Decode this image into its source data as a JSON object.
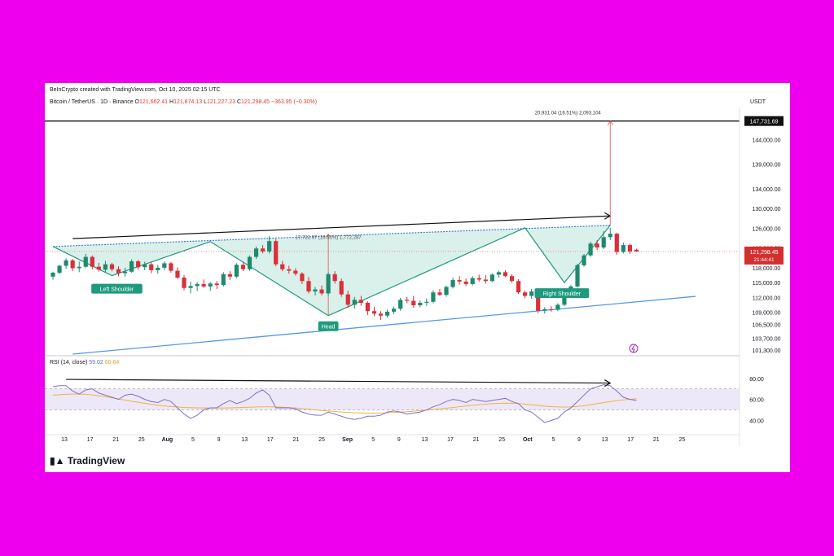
{
  "header": {
    "credit": "BeInCrypto created with TradingView.com, Oct 10, 2025 02:15 UTC",
    "symbol": "Bitcoin / TetherUS · 1D · Binance",
    "ohlc": {
      "o_label": "O",
      "o": "121,662.41",
      "h_label": "H",
      "h": "121,874.13",
      "l_label": "L",
      "l": "121,227.23",
      "c_label": "C",
      "c": "121,298.45",
      "change": "−363.95 (−0.30%)"
    },
    "currency": "USDT"
  },
  "rsi_header": {
    "label": "RSI (14, close)",
    "value": "59.02",
    "ma_value": "60.64"
  },
  "price_axis": {
    "ticks": [
      "144,000.00",
      "139,000.00",
      "134,000.00",
      "130,000.00",
      "126,000.00",
      "122,000.00",
      "118,000.00",
      "115,000.00",
      "112,000.00",
      "109,000.00",
      "106,500.00",
      "103,700.00",
      "101,300.00"
    ],
    "target_label": "147,731.69",
    "current_label": "121,298.45",
    "countdown": "21:44:41"
  },
  "rsi_axis": {
    "ticks": [
      "80.00",
      "60.00",
      "40.00"
    ]
  },
  "time_axis": {
    "ticks": [
      "13",
      "17",
      "21",
      "25",
      "Aug",
      "5",
      "9",
      "13",
      "17",
      "21",
      "25",
      "Sep",
      "5",
      "9",
      "13",
      "17",
      "21",
      "25",
      "Oct",
      "5",
      "9",
      "13",
      "17",
      "21",
      "25"
    ]
  },
  "annotations": {
    "left_shoulder": "Left Shoulder",
    "head": "Head",
    "right_shoulder": "Right Shoulder",
    "neck_measure": "17,722.97 (16.51%) 1,772,287",
    "target_measure": "20,931.04 (16.51%) 2,093,104"
  },
  "colors": {
    "up": "#1e8a6e",
    "down": "#d9303a",
    "pattern_fill": "#cdebe3",
    "pattern_line": "#1e9a7c",
    "neckline": "#3a7bd5",
    "trendline": "#5599e8",
    "rsi_line": "#7e6fd0",
    "rsi_ma": "#f0b43a",
    "rsi_band": "#ece8f8",
    "measure": "#e25050",
    "brand": "#ee00ee"
  },
  "chart_data": {
    "type": "candlestick",
    "symbol": "BTC/USDT",
    "timeframe": "1D",
    "ylim": [
      100500,
      148500
    ],
    "candles": [
      {
        "o": 116200,
        "h": 117200,
        "l": 115600,
        "c": 117000
      },
      {
        "o": 117000,
        "h": 118600,
        "l": 116700,
        "c": 118400
      },
      {
        "o": 118400,
        "h": 119900,
        "l": 117800,
        "c": 119500
      },
      {
        "o": 119500,
        "h": 119800,
        "l": 117300,
        "c": 117900
      },
      {
        "o": 117900,
        "h": 119300,
        "l": 117100,
        "c": 118200
      },
      {
        "o": 118200,
        "h": 120800,
        "l": 118000,
        "c": 120200
      },
      {
        "o": 120200,
        "h": 120500,
        "l": 117700,
        "c": 118200
      },
      {
        "o": 118200,
        "h": 119000,
        "l": 117200,
        "c": 117600
      },
      {
        "o": 117600,
        "h": 119400,
        "l": 117000,
        "c": 118700
      },
      {
        "o": 118700,
        "h": 119000,
        "l": 117300,
        "c": 117700
      },
      {
        "o": 117700,
        "h": 118300,
        "l": 116300,
        "c": 116900
      },
      {
        "o": 116900,
        "h": 118000,
        "l": 116200,
        "c": 117200
      },
      {
        "o": 117200,
        "h": 119700,
        "l": 117000,
        "c": 119300
      },
      {
        "o": 119300,
        "h": 119600,
        "l": 117600,
        "c": 118100
      },
      {
        "o": 118100,
        "h": 119200,
        "l": 117500,
        "c": 118700
      },
      {
        "o": 118700,
        "h": 119100,
        "l": 116900,
        "c": 117500
      },
      {
        "o": 117500,
        "h": 118600,
        "l": 116800,
        "c": 118000
      },
      {
        "o": 118000,
        "h": 119300,
        "l": 117500,
        "c": 118900
      },
      {
        "o": 118900,
        "h": 119200,
        "l": 117000,
        "c": 117400
      },
      {
        "o": 117400,
        "h": 118100,
        "l": 115700,
        "c": 116000
      },
      {
        "o": 116000,
        "h": 116500,
        "l": 113400,
        "c": 113900
      },
      {
        "o": 113900,
        "h": 115200,
        "l": 112800,
        "c": 114300
      },
      {
        "o": 114300,
        "h": 115100,
        "l": 113300,
        "c": 114700
      },
      {
        "o": 114700,
        "h": 115600,
        "l": 113900,
        "c": 114200
      },
      {
        "o": 114200,
        "h": 115100,
        "l": 113300,
        "c": 114800
      },
      {
        "o": 114800,
        "h": 115300,
        "l": 113700,
        "c": 114500
      },
      {
        "o": 114500,
        "h": 117100,
        "l": 114200,
        "c": 116700
      },
      {
        "o": 116700,
        "h": 117300,
        "l": 115500,
        "c": 116200
      },
      {
        "o": 116200,
        "h": 118900,
        "l": 115900,
        "c": 118600
      },
      {
        "o": 118600,
        "h": 119200,
        "l": 117300,
        "c": 117700
      },
      {
        "o": 117700,
        "h": 120500,
        "l": 117400,
        "c": 120200
      },
      {
        "o": 120200,
        "h": 122300,
        "l": 119800,
        "c": 121900
      },
      {
        "o": 121900,
        "h": 122600,
        "l": 120900,
        "c": 121300
      },
      {
        "o": 121300,
        "h": 124400,
        "l": 120900,
        "c": 123400
      },
      {
        "o": 123400,
        "h": 123800,
        "l": 118300,
        "c": 118700
      },
      {
        "o": 118700,
        "h": 119400,
        "l": 117300,
        "c": 117700
      },
      {
        "o": 117700,
        "h": 118400,
        "l": 116800,
        "c": 117400
      },
      {
        "o": 117400,
        "h": 117900,
        "l": 116400,
        "c": 116800
      },
      {
        "o": 116800,
        "h": 117100,
        "l": 114700,
        "c": 115300
      },
      {
        "o": 115300,
        "h": 116100,
        "l": 112800,
        "c": 113200
      },
      {
        "o": 113200,
        "h": 114100,
        "l": 112400,
        "c": 113600
      },
      {
        "o": 113600,
        "h": 114400,
        "l": 112400,
        "c": 112800
      },
      {
        "o": 112800,
        "h": 117100,
        "l": 112300,
        "c": 116700
      },
      {
        "o": 116700,
        "h": 117300,
        "l": 114800,
        "c": 115300
      },
      {
        "o": 115300,
        "h": 115800,
        "l": 112100,
        "c": 112600
      },
      {
        "o": 112600,
        "h": 113300,
        "l": 109900,
        "c": 110500
      },
      {
        "o": 110500,
        "h": 112100,
        "l": 109700,
        "c": 111500
      },
      {
        "o": 111500,
        "h": 112300,
        "l": 110300,
        "c": 110900
      },
      {
        "o": 110900,
        "h": 111200,
        "l": 108400,
        "c": 109200
      },
      {
        "o": 109200,
        "h": 110100,
        "l": 108200,
        "c": 108700
      },
      {
        "o": 108700,
        "h": 109200,
        "l": 107400,
        "c": 108300
      },
      {
        "o": 108300,
        "h": 109500,
        "l": 107900,
        "c": 109100
      },
      {
        "o": 109100,
        "h": 110100,
        "l": 108600,
        "c": 109700
      },
      {
        "o": 109700,
        "h": 111900,
        "l": 109300,
        "c": 111500
      },
      {
        "o": 111500,
        "h": 112100,
        "l": 110800,
        "c": 111300
      },
      {
        "o": 111300,
        "h": 112300,
        "l": 109900,
        "c": 110400
      },
      {
        "o": 110400,
        "h": 111400,
        "l": 110000,
        "c": 110900
      },
      {
        "o": 110900,
        "h": 111800,
        "l": 110300,
        "c": 111100
      },
      {
        "o": 111100,
        "h": 113400,
        "l": 110800,
        "c": 113000
      },
      {
        "o": 113000,
        "h": 113700,
        "l": 112300,
        "c": 112500
      },
      {
        "o": 112500,
        "h": 114400,
        "l": 112100,
        "c": 114100
      },
      {
        "o": 114100,
        "h": 116000,
        "l": 113800,
        "c": 115500
      },
      {
        "o": 115500,
        "h": 116300,
        "l": 114600,
        "c": 115200
      },
      {
        "o": 115200,
        "h": 115800,
        "l": 114300,
        "c": 114700
      },
      {
        "o": 114700,
        "h": 116300,
        "l": 114400,
        "c": 115900
      },
      {
        "o": 115900,
        "h": 116600,
        "l": 115200,
        "c": 115600
      },
      {
        "o": 115600,
        "h": 116500,
        "l": 114800,
        "c": 115300
      },
      {
        "o": 115300,
        "h": 116900,
        "l": 115100,
        "c": 116600
      },
      {
        "o": 116600,
        "h": 117400,
        "l": 116000,
        "c": 117100
      },
      {
        "o": 117100,
        "h": 117500,
        "l": 116100,
        "c": 116300
      },
      {
        "o": 116300,
        "h": 116700,
        "l": 115000,
        "c": 115300
      },
      {
        "o": 115300,
        "h": 115700,
        "l": 112700,
        "c": 113000
      },
      {
        "o": 113000,
        "h": 113400,
        "l": 111800,
        "c": 112300
      },
      {
        "o": 112300,
        "h": 113700,
        "l": 111700,
        "c": 113200
      },
      {
        "o": 113200,
        "h": 113500,
        "l": 108800,
        "c": 109300
      },
      {
        "o": 109300,
        "h": 110000,
        "l": 108700,
        "c": 109600
      },
      {
        "o": 109600,
        "h": 110200,
        "l": 109100,
        "c": 109500
      },
      {
        "o": 109500,
        "h": 110800,
        "l": 109200,
        "c": 110500
      },
      {
        "o": 110500,
        "h": 113200,
        "l": 110200,
        "c": 112800
      },
      {
        "o": 112800,
        "h": 114500,
        "l": 112500,
        "c": 114200
      },
      {
        "o": 114200,
        "h": 118800,
        "l": 114000,
        "c": 118500
      },
      {
        "o": 118500,
        "h": 120800,
        "l": 118200,
        "c": 120500
      },
      {
        "o": 120500,
        "h": 123300,
        "l": 120200,
        "c": 122900
      },
      {
        "o": 122900,
        "h": 123600,
        "l": 121600,
        "c": 122100
      },
      {
        "o": 122100,
        "h": 125400,
        "l": 121800,
        "c": 124200
      },
      {
        "o": 124200,
        "h": 126100,
        "l": 123600,
        "c": 124900
      },
      {
        "o": 124900,
        "h": 125100,
        "l": 120600,
        "c": 121200
      },
      {
        "o": 121200,
        "h": 123100,
        "l": 120900,
        "c": 122600
      },
      {
        "o": 122600,
        "h": 122900,
        "l": 120800,
        "c": 121300
      },
      {
        "o": 121662,
        "h": 121874,
        "l": 121227,
        "c": 121298
      }
    ],
    "pattern": {
      "name": "Inverse head and shoulders",
      "points": [
        {
          "label": "start",
          "bar": 0,
          "price": 122300
        },
        {
          "label": "Left Shoulder",
          "bar": 9,
          "price": 116400
        },
        {
          "label": "",
          "bar": 24,
          "price": 123300
        },
        {
          "label": "Head",
          "bar": 42,
          "price": 108300
        },
        {
          "label": "",
          "bar": 72,
          "price": 126100
        },
        {
          "label": "Right Shoulder",
          "bar": 78,
          "price": 115000
        },
        {
          "label": "end",
          "bar": 85,
          "price": 126600
        }
      ],
      "neckline": [
        {
          "bar": 0,
          "price": 122300
        },
        {
          "bar": 85,
          "price": 126600
        }
      ],
      "target": 147731.69
    },
    "current_price": 121298.45,
    "rsi": {
      "ylim": [
        28,
        86
      ],
      "upper": 70,
      "lower": 50,
      "values": [
        72,
        73,
        73,
        68,
        65,
        69,
        70,
        66,
        64,
        62,
        60,
        64,
        65,
        63,
        60,
        58,
        57,
        60,
        58,
        52,
        46,
        42,
        45,
        50,
        52,
        52,
        56,
        59,
        56,
        58,
        61,
        66,
        69,
        64,
        52,
        52,
        52,
        51,
        48,
        46,
        45,
        45,
        48,
        46,
        44,
        42,
        41,
        42,
        44,
        44,
        45,
        48,
        49,
        48,
        46,
        47,
        48,
        50,
        53,
        55,
        58,
        60,
        59,
        57,
        60,
        59,
        58,
        59,
        60,
        61,
        58,
        56,
        50,
        48,
        43,
        38,
        40,
        42,
        48,
        52,
        58,
        64,
        70,
        72,
        74,
        73,
        68,
        62,
        60,
        59
      ],
      "ma": [
        64,
        64.4,
        64.8,
        65,
        65,
        64.8,
        64.3,
        63.5,
        62.6,
        61.5,
        60.4,
        59.3,
        58.3,
        57.3,
        56.3,
        55.4,
        54.5,
        53.8,
        53.2,
        52.8,
        52.4,
        52.2,
        52,
        51.9,
        51.8,
        51.8,
        51.9,
        52,
        52.2,
        52.4,
        52.6,
        52.8,
        52.9,
        52.9,
        52.8,
        52.6,
        52.3,
        51.9,
        51.3,
        50.7,
        50.1,
        49.5,
        49,
        48.5,
        48,
        47.6,
        47.3,
        47.1,
        47,
        47,
        47,
        47.2,
        47.5,
        47.9,
        48.3,
        48.8,
        49.3,
        49.8,
        50.3,
        50.9,
        51.6,
        52.3,
        53,
        53.7,
        54.4,
        55,
        55.5,
        55.9,
        56.2,
        56.4,
        56.3,
        56,
        55.5,
        54.9,
        54.2,
        53.6,
        53.1,
        52.8,
        52.7,
        52.8,
        53.3,
        54,
        55,
        56,
        57,
        58,
        58.8,
        59.5,
        60.1,
        60.64
      ]
    }
  }
}
